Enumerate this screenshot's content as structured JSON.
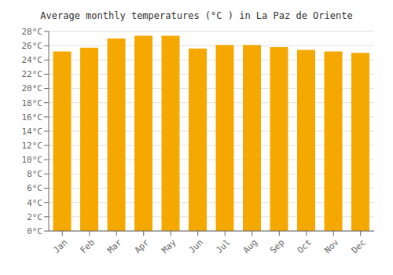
{
  "chart_data": {
    "type": "bar",
    "title": "Average monthly temperatures (°C ) in La Paz de Oriente",
    "categories": [
      "Jan",
      "Feb",
      "Mar",
      "Apr",
      "May",
      "Jun",
      "Jul",
      "Aug",
      "Sep",
      "Oct",
      "Nov",
      "Dec"
    ],
    "values": [
      25.2,
      25.7,
      27.0,
      27.4,
      27.4,
      25.6,
      26.1,
      26.1,
      25.8,
      25.4,
      25.2,
      25.0
    ],
    "color": "#F5A800",
    "ylim": [
      0,
      28
    ],
    "yticks": [
      {
        "value": 0,
        "label": "0°C"
      },
      {
        "value": 2,
        "label": "2°C"
      },
      {
        "value": 4,
        "label": "4°C"
      },
      {
        "value": 6,
        "label": "6°C"
      },
      {
        "value": 8,
        "label": "8°C"
      },
      {
        "value": 10,
        "label": "10°C"
      },
      {
        "value": 12,
        "label": "12°C"
      },
      {
        "value": 14,
        "label": "14°C"
      },
      {
        "value": 16,
        "label": "16°C"
      },
      {
        "value": 18,
        "label": "18°C"
      },
      {
        "value": 20,
        "label": "20°C"
      },
      {
        "value": 22,
        "label": "22°C"
      },
      {
        "value": 24,
        "label": "24°C"
      },
      {
        "value": 26,
        "label": "26°C"
      },
      {
        "value": 28,
        "label": "28°C"
      }
    ],
    "grid": true
  }
}
